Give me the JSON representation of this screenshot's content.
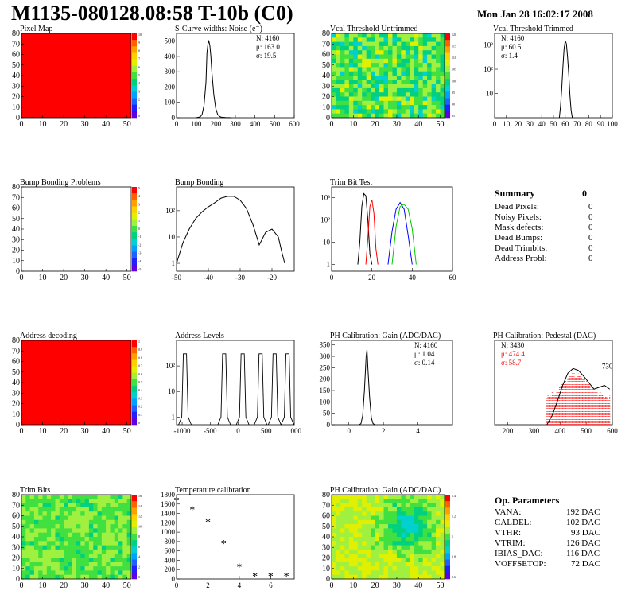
{
  "header": {
    "title": "M1135-080128.08:58 T-10b (C0)",
    "date": "Mon Jan 28 16:02:17 2008"
  },
  "summary": {
    "heading": "Summary",
    "value": "0",
    "rows": [
      {
        "label": "Dead Pixels:",
        "value": "0"
      },
      {
        "label": "Noisy Pixels:",
        "value": "0"
      },
      {
        "label": "Mask defects:",
        "value": "0"
      },
      {
        "label": "Dead Bumps:",
        "value": "0"
      },
      {
        "label": "Dead Trimbits:",
        "value": "0"
      },
      {
        "label": "Address Probl:",
        "value": "0"
      }
    ]
  },
  "op_params": {
    "heading": "Op. Parameters",
    "rows": [
      {
        "label": "VANA:",
        "value": "192 DAC"
      },
      {
        "label": "CALDEL:",
        "value": "102 DAC"
      },
      {
        "label": "VTHR:",
        "value": "93 DAC"
      },
      {
        "label": "VTRIM:",
        "value": "126 DAC"
      },
      {
        "label": "IBIAS_DAC:",
        "value": "116 DAC"
      },
      {
        "label": "VOFFSETOP:",
        "value": "72 DAC"
      }
    ]
  },
  "chart_data": [
    {
      "id": "pixel-map",
      "type": "heatmap",
      "title": "Pixel Map",
      "pattern": "uniform",
      "fill": "#ff0000",
      "xticks": [
        "0",
        "10",
        "20",
        "30",
        "40",
        "50"
      ],
      "yticks": [
        "0",
        "10",
        "20",
        "30",
        "40",
        "50",
        "60",
        "70",
        "80"
      ],
      "xlim": [
        0,
        52
      ],
      "ylim": [
        0,
        80
      ],
      "palette_ticks": [
        "10",
        "9",
        "8",
        "7",
        "6",
        "5",
        "4",
        "3",
        "2",
        "1",
        "0"
      ]
    },
    {
      "id": "scurve",
      "type": "line",
      "title": "S-Curve widths: Noise (e⁻)",
      "xlim": [
        0,
        600
      ],
      "ylim": [
        0,
        550
      ],
      "xticks": [
        "0",
        "100",
        "200",
        "300",
        "400",
        "500",
        "600"
      ],
      "yticks": [
        "0",
        "100",
        "200",
        "300",
        "400",
        "500"
      ],
      "stats": [
        "N: 4160",
        "μ: 163.0",
        "σ: 19.5"
      ],
      "series": [
        {
          "color": "#000000",
          "x": [
            100,
            120,
            130,
            140,
            150,
            155,
            160,
            165,
            170,
            175,
            180,
            190,
            200,
            210,
            220,
            230,
            250,
            280
          ],
          "y": [
            0,
            5,
            20,
            80,
            230,
            420,
            480,
            500,
            470,
            400,
            300,
            150,
            60,
            20,
            8,
            3,
            1,
            0
          ]
        }
      ]
    },
    {
      "id": "vcal-untrimmed",
      "type": "heatmap",
      "title": "Vcal Threshold Untrimmed",
      "pattern": "noise",
      "xticks": [
        "0",
        "10",
        "20",
        "30",
        "40",
        "50"
      ],
      "yticks": [
        "0",
        "10",
        "20",
        "30",
        "40",
        "50",
        "60",
        "70",
        "80"
      ],
      "xlim": [
        0,
        52
      ],
      "ylim": [
        0,
        80
      ],
      "palette_ticks": [
        "120",
        "115",
        "110",
        "105",
        "100",
        "95",
        "90",
        "85"
      ]
    },
    {
      "id": "vcal-trimmed",
      "type": "line",
      "title": "Vcal Threshold Trimmed",
      "xlim": [
        0,
        100
      ],
      "ylog": true,
      "ylim": [
        1,
        3000
      ],
      "xticks": [
        "0",
        "10",
        "20",
        "30",
        "40",
        "50",
        "60",
        "70",
        "80",
        "90",
        "100"
      ],
      "yticks": [
        "10",
        "10²",
        "10³"
      ],
      "stats": [
        "N: 4160",
        "μ: 60.5",
        "σ:  1.4"
      ],
      "series": [
        {
          "color": "#000000",
          "x": [
            55,
            56,
            57,
            58,
            59,
            60,
            61,
            62,
            63,
            64,
            65,
            66
          ],
          "y": [
            1,
            3,
            15,
            120,
            700,
            1500,
            1100,
            300,
            60,
            8,
            2,
            1
          ]
        }
      ]
    },
    {
      "id": "bump-problems",
      "type": "heatmap",
      "title": "Bump Bonding Problems",
      "pattern": "empty",
      "xticks": [
        "0",
        "10",
        "20",
        "30",
        "40",
        "50"
      ],
      "yticks": [
        "0",
        "10",
        "20",
        "30",
        "40",
        "50",
        "60",
        "70",
        "80"
      ],
      "xlim": [
        0,
        52
      ],
      "ylim": [
        0,
        80
      ],
      "palette_ticks": [
        "5",
        "4",
        "3",
        "2",
        "1",
        "0",
        "-1",
        "-2",
        "-3",
        "-4",
        "-5"
      ]
    },
    {
      "id": "bump-bonding",
      "type": "line",
      "title": "Bump Bonding",
      "xlim": [
        -50,
        -13
      ],
      "ylog": true,
      "ylim": [
        0.5,
        800
      ],
      "xticks": [
        "-50",
        "-40",
        "-30",
        "-20"
      ],
      "yticks": [
        "1",
        "10",
        "10²"
      ],
      "series": [
        {
          "color": "#000000",
          "x": [
            -50,
            -48,
            -46,
            -44,
            -42,
            -40,
            -38,
            -36,
            -34,
            -32,
            -30,
            -28,
            -26,
            -24,
            -22,
            -20,
            -18,
            -17,
            -16
          ],
          "y": [
            1,
            6,
            20,
            50,
            90,
            140,
            200,
            300,
            350,
            350,
            250,
            120,
            30,
            5,
            15,
            20,
            10,
            3,
            1
          ]
        }
      ]
    },
    {
      "id": "trim-bit-test",
      "type": "line",
      "title": "Trim Bit Test",
      "xlim": [
        0,
        60
      ],
      "ylog": true,
      "ylim": [
        0.5,
        3000
      ],
      "xticks": [
        "0",
        "20",
        "40",
        "60"
      ],
      "yticks": [
        "1",
        "10",
        "10²",
        "10³"
      ],
      "series": [
        {
          "color": "#000000",
          "x": [
            13,
            14,
            15,
            16,
            17,
            18,
            19,
            20
          ],
          "y": [
            1,
            10,
            400,
            1500,
            1200,
            100,
            3,
            1
          ]
        },
        {
          "color": "#ff0000",
          "x": [
            17,
            18,
            19,
            20,
            21,
            22,
            23
          ],
          "y": [
            1,
            15,
            400,
            800,
            200,
            5,
            1
          ]
        },
        {
          "color": "#0000ff",
          "x": [
            28,
            30,
            32,
            34,
            36,
            38,
            40
          ],
          "y": [
            1,
            30,
            300,
            600,
            300,
            20,
            1
          ]
        },
        {
          "color": "#00cc00",
          "x": [
            30,
            32,
            34,
            36,
            38,
            40,
            42
          ],
          "y": [
            1,
            50,
            400,
            500,
            300,
            40,
            1
          ]
        }
      ]
    },
    {
      "id": "address-decoding",
      "type": "heatmap",
      "title": "Address decoding",
      "pattern": "uniform",
      "fill": "#ff0000",
      "xticks": [
        "0",
        "10",
        "20",
        "30",
        "40",
        "50"
      ],
      "yticks": [
        "0",
        "10",
        "20",
        "30",
        "40",
        "50",
        "60",
        "70",
        "80"
      ],
      "xlim": [
        0,
        52
      ],
      "ylim": [
        0,
        80
      ],
      "palette_ticks": [
        "1",
        "0.9",
        "0.8",
        "0.7",
        "0.6",
        "0.5",
        "0.4",
        "0.3",
        "0.2",
        "0.1",
        "0"
      ]
    },
    {
      "id": "address-levels",
      "type": "line",
      "title": "Address Levels",
      "xlim": [
        -1100,
        1000
      ],
      "ylog": true,
      "ylim": [
        0.5,
        1000
      ],
      "xticks": [
        "-1000",
        "-500",
        "0",
        "500",
        "1000"
      ],
      "yticks": [
        "1",
        "10",
        "10²"
      ],
      "peaks": [
        -950,
        -250,
        80,
        400,
        650,
        880
      ],
      "series": [
        {
          "color": "#000000",
          "x": [],
          "y": []
        }
      ]
    },
    {
      "id": "ph-gain",
      "type": "line",
      "title": "PH Calibration: Gain (ADC/DAC)",
      "xlim": [
        -1,
        6
      ],
      "ylim": [
        0,
        370
      ],
      "xticks": [
        "0",
        "2",
        "4"
      ],
      "yticks": [
        "0",
        "50",
        "100",
        "150",
        "200",
        "250",
        "300",
        "350"
      ],
      "stats": [
        "N: 4160",
        "μ: 1.04",
        "σ: 0.14"
      ],
      "series": [
        {
          "color": "#000000",
          "x": [
            0.6,
            0.7,
            0.8,
            0.9,
            1.0,
            1.05,
            1.1,
            1.2,
            1.3,
            1.4,
            1.5
          ],
          "y": [
            0,
            5,
            40,
            150,
            300,
            330,
            250,
            120,
            30,
            5,
            0
          ]
        }
      ]
    },
    {
      "id": "ph-pedestal",
      "type": "line",
      "title": "PH Calibration: Pedestal (DAC)",
      "xlim": [
        150,
        600
      ],
      "ylim": [
        0,
        900
      ],
      "xticks": [
        "200",
        "300",
        "400",
        "500",
        "600"
      ],
      "yticks": [],
      "stats": [
        "N: 3430",
        "μ: 474.4",
        "σ: 58.7"
      ],
      "annotation": "730",
      "series": [
        {
          "color": "#000000",
          "x": [
            350,
            370,
            390,
            410,
            430,
            450,
            470,
            490,
            510,
            530,
            550,
            570,
            590
          ],
          "y": [
            0,
            100,
            250,
            420,
            550,
            600,
            580,
            520,
            450,
            380,
            400,
            420,
            380
          ]
        }
      ]
    },
    {
      "id": "trim-bits",
      "type": "heatmap",
      "title": "Trim Bits",
      "pattern": "noise-green",
      "xticks": [
        "0",
        "10",
        "20",
        "30",
        "40",
        "50"
      ],
      "yticks": [
        "0",
        "10",
        "20",
        "30",
        "40",
        "50",
        "60",
        "70",
        "80"
      ],
      "xlim": [
        0,
        52
      ],
      "ylim": [
        0,
        80
      ],
      "palette_ticks": [
        "16",
        "14",
        "12",
        "10",
        "8",
        "6",
        "4",
        "2",
        "0"
      ]
    },
    {
      "id": "temperature-calibration",
      "type": "scatter",
      "title": "Temperature calibration",
      "xlim": [
        0,
        7.5
      ],
      "ylim": [
        0,
        1800
      ],
      "xticks": [
        "0",
        "2",
        "4",
        "6"
      ],
      "yticks": [
        "0",
        "200",
        "400",
        "600",
        "800",
        "1000",
        "1200",
        "1400",
        "1600",
        "1800"
      ],
      "x": [
        0,
        1,
        2,
        3,
        4,
        5,
        6,
        7
      ],
      "y": [
        1680,
        1490,
        1220,
        760,
        260,
        70,
        70,
        70
      ]
    },
    {
      "id": "ph-gain-map",
      "type": "heatmap",
      "title": "PH Calibration: Gain (ADC/DAC)",
      "pattern": "blob",
      "xticks": [
        "0",
        "10",
        "20",
        "30",
        "40",
        "50"
      ],
      "yticks": [
        "0",
        "10",
        "20",
        "30",
        "40",
        "50",
        "60",
        "70",
        "80"
      ],
      "xlim": [
        0,
        52
      ],
      "ylim": [
        0,
        80
      ],
      "palette_ticks": [
        "1.4",
        "1.2",
        "1",
        "0.8",
        "0.6"
      ]
    }
  ]
}
